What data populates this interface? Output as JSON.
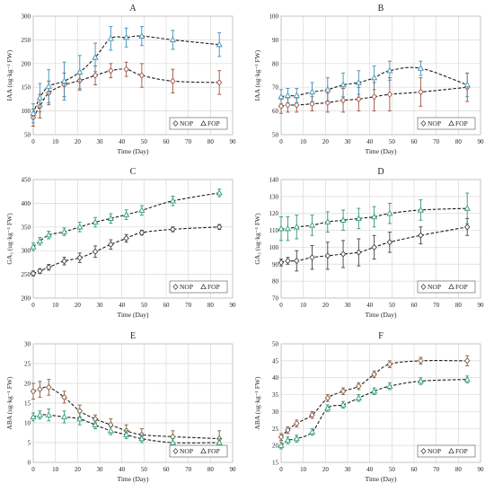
{
  "chart_data": [
    {
      "panel": "A",
      "type": "scatter",
      "title": "A",
      "xlabel": "Time (Day)",
      "ylabel": "IAA (ug·kg⁻¹ FW)",
      "xlim": [
        0,
        90
      ],
      "ylim": [
        50,
        300
      ],
      "xticks": [
        0,
        10,
        20,
        30,
        40,
        50,
        60,
        70,
        80,
        90
      ],
      "yticks": [
        50,
        100,
        150,
        200,
        250,
        300
      ],
      "grid": true,
      "legend_position": "bottom-right",
      "series": [
        {
          "name": "NOP",
          "marker": "diamond",
          "color": "#a0523c",
          "x": [
            0,
            3,
            7,
            14,
            21,
            28,
            35,
            42,
            49,
            63,
            84
          ],
          "y": [
            86,
            110,
            138,
            155,
            164,
            175,
            185,
            188,
            175,
            163,
            160
          ],
          "err": [
            18,
            25,
            25,
            25,
            20,
            20,
            15,
            15,
            25,
            25,
            25
          ]
        },
        {
          "name": "FOP",
          "marker": "triangle",
          "color": "#3f8fb5",
          "x": [
            0,
            3,
            7,
            14,
            21,
            28,
            35,
            42,
            49,
            63,
            84
          ],
          "y": [
            95,
            128,
            152,
            163,
            182,
            213,
            253,
            255,
            258,
            250,
            240
          ],
          "err": [
            20,
            30,
            35,
            40,
            35,
            30,
            25,
            20,
            20,
            20,
            25
          ]
        }
      ]
    },
    {
      "panel": "B",
      "type": "scatter",
      "title": "B",
      "xlabel": "Time (Day)",
      "ylabel": "IAA (ug·kg⁻¹ FW)",
      "xlim": [
        0,
        90
      ],
      "ylim": [
        50,
        100
      ],
      "xticks": [
        0,
        10,
        20,
        30,
        40,
        50,
        60,
        70,
        80,
        90
      ],
      "yticks": [
        50,
        60,
        70,
        80,
        90,
        100
      ],
      "grid": true,
      "legend_position": "bottom-right",
      "series": [
        {
          "name": "NOP",
          "marker": "diamond",
          "color": "#a0523c",
          "x": [
            0,
            3,
            7,
            14,
            21,
            28,
            35,
            42,
            49,
            63,
            84
          ],
          "y": [
            62,
            62.5,
            62.5,
            63,
            63.5,
            64.5,
            65,
            66,
            67,
            68,
            70
          ],
          "err": [
            3,
            3,
            3,
            3,
            4,
            5,
            5,
            6,
            7,
            6,
            6
          ]
        },
        {
          "name": "FOP",
          "marker": "triangle",
          "color": "#3f8fb5",
          "x": [
            0,
            3,
            7,
            14,
            21,
            28,
            35,
            42,
            49,
            63,
            84
          ],
          "y": [
            66,
            66.5,
            66.5,
            68,
            69,
            71,
            72,
            74,
            77,
            78,
            71
          ],
          "err": [
            3,
            3,
            3,
            4,
            5,
            5,
            5,
            5,
            4,
            3,
            5
          ]
        }
      ]
    },
    {
      "panel": "C",
      "type": "scatter",
      "title": "C",
      "xlabel": "Time (Day)",
      "ylabel": "GA₃ (ug·kg⁻¹ FW)",
      "xlim": [
        0,
        90
      ],
      "ylim": [
        200,
        450
      ],
      "xticks": [
        0,
        10,
        20,
        30,
        40,
        50,
        60,
        70,
        80,
        90
      ],
      "yticks": [
        200,
        250,
        300,
        350,
        400,
        450
      ],
      "grid": true,
      "legend_position": "bottom-right",
      "series": [
        {
          "name": "NOP",
          "marker": "diamond",
          "color": "#444444",
          "x": [
            0,
            3,
            7,
            14,
            21,
            28,
            35,
            42,
            49,
            63,
            84
          ],
          "y": [
            252,
            257,
            265,
            278,
            285,
            298,
            313,
            326,
            338,
            345,
            350
          ],
          "err": [
            5,
            5,
            6,
            8,
            10,
            12,
            10,
            8,
            5,
            5,
            5
          ]
        },
        {
          "name": "FOP",
          "marker": "triangle",
          "color": "#2e9a78",
          "x": [
            0,
            3,
            7,
            14,
            21,
            28,
            35,
            42,
            49,
            63,
            84
          ],
          "y": [
            308,
            320,
            333,
            340,
            350,
            360,
            368,
            376,
            385,
            405,
            422
          ],
          "err": [
            8,
            8,
            8,
            8,
            10,
            10,
            10,
            10,
            10,
            10,
            8
          ]
        }
      ]
    },
    {
      "panel": "D",
      "type": "scatter",
      "title": "D",
      "xlabel": "Time (Day)",
      "ylabel": "GA₃ (ug·kg⁻¹ FW)",
      "xlim": [
        0,
        90
      ],
      "ylim": [
        70,
        140
      ],
      "xticks": [
        0,
        10,
        20,
        30,
        40,
        50,
        60,
        70,
        80,
        90
      ],
      "yticks": [
        70,
        80,
        90,
        100,
        110,
        120,
        130,
        140
      ],
      "grid": true,
      "legend_position": "bottom-right",
      "series": [
        {
          "name": "NOP",
          "marker": "diamond",
          "color": "#444444",
          "x": [
            0,
            3,
            7,
            14,
            21,
            28,
            35,
            42,
            49,
            63,
            84
          ],
          "y": [
            91,
            92,
            92,
            94,
            95,
            96,
            97,
            100,
            103,
            107,
            112
          ],
          "err": [
            2,
            2,
            6,
            7,
            8,
            8,
            8,
            7,
            6,
            5,
            5
          ]
        },
        {
          "name": "FOP",
          "marker": "triangle",
          "color": "#2e9a78",
          "x": [
            0,
            3,
            7,
            14,
            21,
            28,
            35,
            42,
            49,
            63,
            84
          ],
          "y": [
            111,
            111,
            112,
            113,
            115,
            116,
            117,
            118,
            120,
            122,
            123
          ],
          "err": [
            7,
            7,
            7,
            6,
            6,
            6,
            6,
            6,
            6,
            6,
            9
          ]
        }
      ]
    },
    {
      "panel": "E",
      "type": "scatter",
      "title": "E",
      "xlabel": "Time (Day)",
      "ylabel": "ABA (ug·kg⁻¹ FW)",
      "xlim": [
        0,
        90
      ],
      "ylim": [
        0,
        30
      ],
      "xticks": [
        0,
        10,
        20,
        30,
        40,
        50,
        60,
        70,
        80,
        90
      ],
      "yticks": [
        0,
        5,
        10,
        15,
        20,
        25,
        30
      ],
      "grid": true,
      "legend_position": "bottom-right",
      "series": [
        {
          "name": "NOP",
          "marker": "diamond",
          "color": "#8b5a3c",
          "x": [
            0,
            3,
            7,
            14,
            21,
            28,
            35,
            42,
            49,
            63,
            84
          ],
          "y": [
            18,
            18.5,
            19,
            16.5,
            13,
            11,
            9.5,
            8,
            7,
            6.5,
            6
          ],
          "err": [
            2,
            2,
            2,
            1.5,
            1.5,
            1,
            1.5,
            1.5,
            1.5,
            1.5,
            2
          ]
        },
        {
          "name": "FOP",
          "marker": "triangle",
          "color": "#2e9a78",
          "x": [
            0,
            3,
            7,
            14,
            21,
            28,
            35,
            42,
            49,
            63,
            84
          ],
          "y": [
            11.5,
            12,
            12,
            11.5,
            11,
            9.5,
            8,
            7,
            6,
            5,
            5
          ],
          "err": [
            1,
            1,
            1.5,
            1.5,
            1.5,
            1,
            1,
            1,
            1,
            1,
            1
          ]
        }
      ]
    },
    {
      "panel": "F",
      "type": "scatter",
      "title": "F",
      "xlabel": "Time (Day)",
      "ylabel": "ABA (ug·kg⁻¹ FW)",
      "xlim": [
        0,
        90
      ],
      "ylim": [
        15,
        50
      ],
      "xticks": [
        0,
        10,
        20,
        30,
        40,
        50,
        60,
        70,
        80,
        90
      ],
      "yticks": [
        15,
        20,
        25,
        30,
        35,
        40,
        45,
        50
      ],
      "grid": true,
      "legend_position": "bottom-right",
      "series": [
        {
          "name": "NOP",
          "marker": "diamond",
          "color": "#8b5a3c",
          "x": [
            0,
            3,
            7,
            14,
            21,
            28,
            35,
            42,
            49,
            63,
            84
          ],
          "y": [
            22.5,
            24.5,
            26.5,
            29,
            34,
            36,
            37.5,
            41,
            44,
            45,
            45
          ],
          "err": [
            1,
            1,
            1,
            1,
            1,
            1,
            1,
            1,
            1,
            1,
            1.5
          ]
        },
        {
          "name": "FOP",
          "marker": "triangle",
          "color": "#2e9a78",
          "x": [
            0,
            3,
            7,
            14,
            21,
            28,
            35,
            42,
            49,
            63,
            84
          ],
          "y": [
            20,
            21.5,
            22,
            24,
            31,
            32,
            34,
            36,
            37.5,
            39,
            39.5
          ],
          "err": [
            1,
            1,
            1,
            1,
            1,
            1,
            1,
            1,
            1,
            1,
            1
          ]
        }
      ]
    }
  ]
}
